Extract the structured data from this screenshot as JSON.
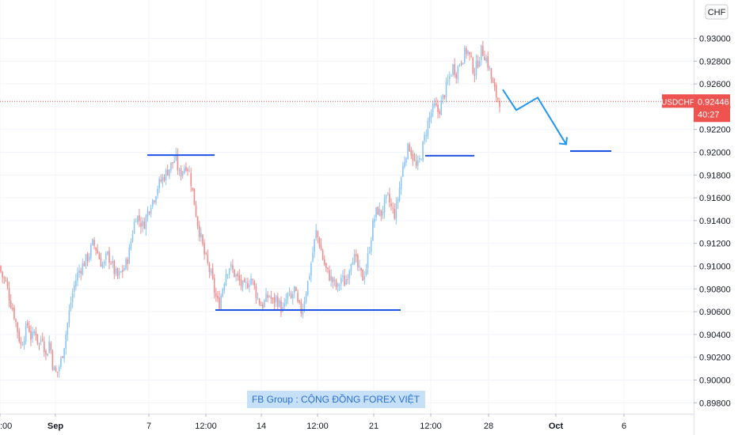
{
  "chart_data": {
    "type": "candlestick",
    "symbol": "USDCHF",
    "currency": "CHF",
    "last_price": "0.92446",
    "countdown": "40:27",
    "price_axis": {
      "ylim": [
        0.897,
        0.932
      ],
      "ticks": [
        "0.93000",
        "0.92800",
        "0.92600",
        "0.92400",
        "0.92200",
        "0.92000",
        "0.91800",
        "0.91600",
        "0.91400",
        "0.91200",
        "0.91000",
        "0.90800",
        "0.90600",
        "0.90400",
        "0.90200",
        "0.90000",
        "0.89800"
      ],
      "tick_values": [
        0.93,
        0.928,
        0.926,
        0.924,
        0.922,
        0.92,
        0.918,
        0.916,
        0.914,
        0.912,
        0.91,
        0.908,
        0.906,
        0.904,
        0.902,
        0.9,
        0.898
      ]
    },
    "time_axis": {
      "ticks": [
        ":00",
        "Sep",
        "7",
        "12:00",
        "14",
        "12:00",
        "21",
        "12:00",
        "28",
        "Oct",
        "6"
      ],
      "bold": [
        false,
        true,
        false,
        false,
        false,
        false,
        false,
        false,
        false,
        true,
        false
      ]
    },
    "price_path": [
      [
        0.91,
        0.909,
        0.9085,
        0.907,
        0.906,
        0.9045,
        0.903,
        0.904,
        0.905,
        0.9035,
        0.9045,
        0.903,
        0.904,
        0.902,
        0.9035,
        0.901,
        0.9005,
        0.9015,
        0.903,
        0.905,
        0.907,
        0.9085,
        0.9095,
        0.91,
        0.9105,
        0.911,
        0.912,
        0.9115,
        0.9105,
        0.91,
        0.911,
        0.9105,
        0.9095,
        0.909,
        0.9095,
        0.91,
        0.911,
        0.913,
        0.9145,
        0.914,
        0.9135,
        0.9145,
        0.9155,
        0.916,
        0.917,
        0.9175,
        0.918,
        0.9185,
        0.919,
        0.9195,
        0.918,
        0.9185,
        0.919,
        0.918,
        0.916,
        0.914,
        0.9125,
        0.911,
        0.91,
        0.909,
        0.9075,
        0.9065,
        0.908,
        0.9095,
        0.91,
        0.9095,
        0.909,
        0.9085,
        0.908,
        0.9085,
        0.909,
        0.908,
        0.907,
        0.9065,
        0.907,
        0.9075,
        0.9068,
        0.9072,
        0.9065,
        0.906,
        0.9075,
        0.907,
        0.908,
        0.9065,
        0.906,
        0.9075,
        0.909,
        0.911,
        0.913,
        0.912,
        0.9105,
        0.9095,
        0.909,
        0.9085,
        0.908,
        0.909,
        0.9085,
        0.9095,
        0.911,
        0.9105,
        0.9095,
        0.909,
        0.91,
        0.912,
        0.914,
        0.915,
        0.9145,
        0.9155,
        0.916,
        0.915,
        0.9145,
        0.9165,
        0.9185,
        0.92,
        0.9205,
        0.9195,
        0.9185,
        0.9195,
        0.921,
        0.9225,
        0.9235,
        0.924,
        0.9235,
        0.9245,
        0.9255,
        0.9265,
        0.9275,
        0.927,
        0.928,
        0.9285,
        0.929,
        0.928,
        0.927,
        0.928,
        0.929,
        0.9285,
        0.9275,
        0.926,
        0.925,
        0.9245
      ]
    ],
    "annotations": [
      {
        "type": "hline",
        "price": 0.91975,
        "from": "7",
        "to": "12:00"
      },
      {
        "type": "hline",
        "price": 0.90615,
        "from": "12:00",
        "to": "21"
      },
      {
        "type": "hline",
        "price": 0.9197,
        "from": "21",
        "to": "28"
      },
      {
        "type": "hline",
        "price": 0.9201,
        "from": "Oct",
        "to": "6"
      },
      {
        "type": "projection",
        "points": [
          0.9255,
          0.9237,
          0.9248,
          0.9207
        ]
      }
    ],
    "banner": "FB Group : CỘNG ĐỒNG FOREX VIỆT",
    "colors": {
      "up": "#8ec5f2",
      "down": "#ef8d8d",
      "annotation": "#1e53e5",
      "projection": "#2196f3",
      "price_label": "#ef5350",
      "banner_bg": "#c6e0f7",
      "banner_text": "#2a6fd6"
    }
  }
}
